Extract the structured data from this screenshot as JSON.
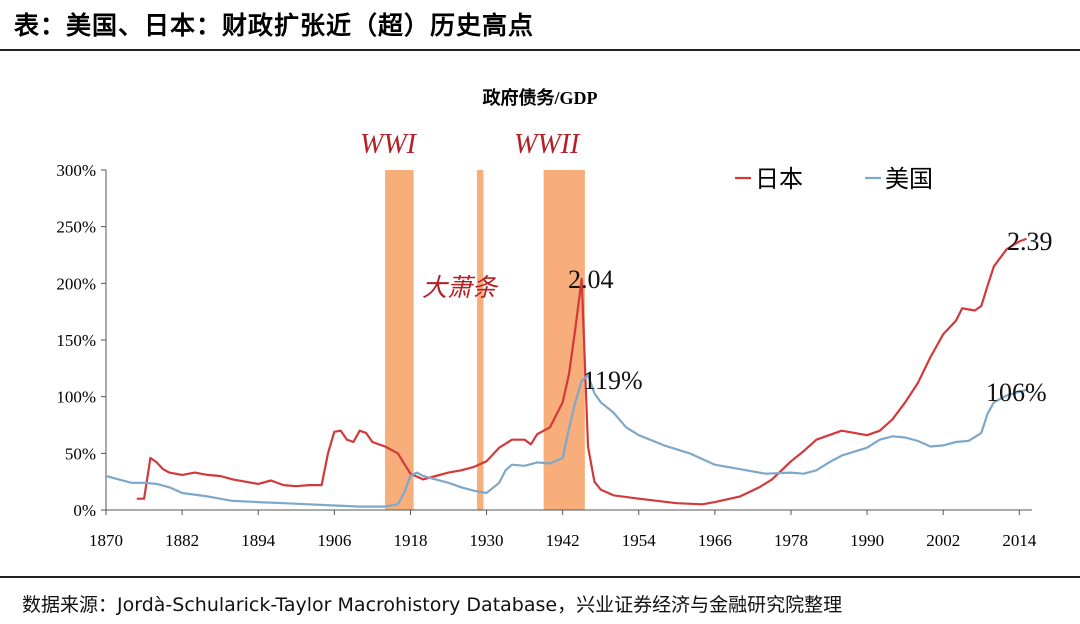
{
  "header": {
    "title": "表：美国、日本：财政扩张近（超）历史高点"
  },
  "footer": {
    "source": "数据来源：Jordà-Schularick-Taylor Macrohistory Database，兴业证券经济与金融研究院整理"
  },
  "colors": {
    "japan": "#d2393b",
    "usa": "#7ea8c9",
    "band": "#f7ae7a",
    "annotation": "#b32025"
  },
  "chart_data": {
    "type": "line",
    "title": "政府债务/GDP",
    "xlabel": "",
    "ylabel": "",
    "xlim": [
      1870,
      2016
    ],
    "ylim": [
      0,
      3.0
    ],
    "x_ticks": [
      "1870",
      "1882",
      "1894",
      "1906",
      "1918",
      "1930",
      "1942",
      "1954",
      "1966",
      "1978",
      "1990",
      "2002",
      "2014"
    ],
    "y_ticks": [
      "0%",
      "50%",
      "100%",
      "150%",
      "200%",
      "250%",
      "300%"
    ],
    "grid": false,
    "legend": {
      "position": "top-right",
      "entries": [
        "日本",
        "美国"
      ]
    },
    "bands": [
      {
        "label": "WWI",
        "start": 1914,
        "end": 1918.5
      },
      {
        "label": "",
        "start": 1928.5,
        "end": 1929.5
      },
      {
        "label": "WWII",
        "start": 1939,
        "end": 1945.5
      }
    ],
    "annotations": [
      {
        "text": "WWI"
      },
      {
        "text": "WWII"
      },
      {
        "text": "大萧条"
      },
      {
        "text": "2.04"
      },
      {
        "text": "119%"
      },
      {
        "text": "2.39"
      },
      {
        "text": "106%"
      }
    ],
    "series": [
      {
        "name": "日本",
        "points": [
          [
            1875,
            0.1
          ],
          [
            1876,
            0.1
          ],
          [
            1877,
            0.46
          ],
          [
            1878,
            0.42
          ],
          [
            1879,
            0.36
          ],
          [
            1880,
            0.33
          ],
          [
            1882,
            0.31
          ],
          [
            1884,
            0.33
          ],
          [
            1886,
            0.31
          ],
          [
            1888,
            0.3
          ],
          [
            1890,
            0.27
          ],
          [
            1892,
            0.25
          ],
          [
            1894,
            0.23
          ],
          [
            1896,
            0.26
          ],
          [
            1898,
            0.22
          ],
          [
            1900,
            0.21
          ],
          [
            1902,
            0.22
          ],
          [
            1904,
            0.22
          ],
          [
            1905,
            0.5
          ],
          [
            1906,
            0.69
          ],
          [
            1907,
            0.7
          ],
          [
            1908,
            0.62
          ],
          [
            1909,
            0.6
          ],
          [
            1910,
            0.7
          ],
          [
            1911,
            0.68
          ],
          [
            1912,
            0.6
          ],
          [
            1914,
            0.56
          ],
          [
            1916,
            0.5
          ],
          [
            1918,
            0.32
          ],
          [
            1920,
            0.27
          ],
          [
            1922,
            0.3
          ],
          [
            1924,
            0.33
          ],
          [
            1926,
            0.35
          ],
          [
            1928,
            0.38
          ],
          [
            1930,
            0.43
          ],
          [
            1932,
            0.55
          ],
          [
            1934,
            0.62
          ],
          [
            1936,
            0.62
          ],
          [
            1937,
            0.58
          ],
          [
            1938,
            0.67
          ],
          [
            1940,
            0.73
          ],
          [
            1942,
            0.95
          ],
          [
            1943,
            1.2
          ],
          [
            1944,
            1.6
          ],
          [
            1945,
            2.04
          ],
          [
            1946,
            0.56
          ],
          [
            1947,
            0.25
          ],
          [
            1948,
            0.18
          ],
          [
            1950,
            0.13
          ],
          [
            1954,
            0.1
          ],
          [
            1960,
            0.06
          ],
          [
            1964,
            0.05
          ],
          [
            1966,
            0.07
          ],
          [
            1970,
            0.12
          ],
          [
            1973,
            0.2
          ],
          [
            1975,
            0.27
          ],
          [
            1978,
            0.43
          ],
          [
            1980,
            0.52
          ],
          [
            1982,
            0.62
          ],
          [
            1984,
            0.66
          ],
          [
            1986,
            0.7
          ],
          [
            1988,
            0.68
          ],
          [
            1990,
            0.66
          ],
          [
            1992,
            0.7
          ],
          [
            1994,
            0.8
          ],
          [
            1996,
            0.95
          ],
          [
            1998,
            1.12
          ],
          [
            2000,
            1.35
          ],
          [
            2002,
            1.55
          ],
          [
            2004,
            1.67
          ],
          [
            2005,
            1.78
          ],
          [
            2007,
            1.76
          ],
          [
            2008,
            1.8
          ],
          [
            2009,
            1.98
          ],
          [
            2010,
            2.15
          ],
          [
            2012,
            2.3
          ],
          [
            2014,
            2.37
          ],
          [
            2015,
            2.39
          ]
        ]
      },
      {
        "name": "美国",
        "points": [
          [
            1870,
            0.3
          ],
          [
            1872,
            0.27
          ],
          [
            1874,
            0.24
          ],
          [
            1876,
            0.24
          ],
          [
            1878,
            0.23
          ],
          [
            1880,
            0.2
          ],
          [
            1882,
            0.15
          ],
          [
            1886,
            0.12
          ],
          [
            1890,
            0.08
          ],
          [
            1894,
            0.07
          ],
          [
            1898,
            0.06
          ],
          [
            1902,
            0.05
          ],
          [
            1906,
            0.04
          ],
          [
            1910,
            0.03
          ],
          [
            1914,
            0.03
          ],
          [
            1916,
            0.05
          ],
          [
            1917,
            0.15
          ],
          [
            1918,
            0.3
          ],
          [
            1919,
            0.33
          ],
          [
            1920,
            0.3
          ],
          [
            1922,
            0.27
          ],
          [
            1924,
            0.24
          ],
          [
            1926,
            0.2
          ],
          [
            1928,
            0.17
          ],
          [
            1930,
            0.15
          ],
          [
            1932,
            0.24
          ],
          [
            1933,
            0.35
          ],
          [
            1934,
            0.4
          ],
          [
            1936,
            0.39
          ],
          [
            1938,
            0.42
          ],
          [
            1940,
            0.41
          ],
          [
            1942,
            0.46
          ],
          [
            1943,
            0.72
          ],
          [
            1944,
            0.95
          ],
          [
            1945,
            1.14
          ],
          [
            1946,
            1.19
          ],
          [
            1947,
            1.03
          ],
          [
            1948,
            0.95
          ],
          [
            1950,
            0.86
          ],
          [
            1952,
            0.73
          ],
          [
            1954,
            0.66
          ],
          [
            1958,
            0.57
          ],
          [
            1962,
            0.5
          ],
          [
            1966,
            0.4
          ],
          [
            1970,
            0.36
          ],
          [
            1974,
            0.32
          ],
          [
            1978,
            0.33
          ],
          [
            1980,
            0.32
          ],
          [
            1982,
            0.35
          ],
          [
            1984,
            0.42
          ],
          [
            1986,
            0.48
          ],
          [
            1990,
            0.55
          ],
          [
            1992,
            0.62
          ],
          [
            1994,
            0.65
          ],
          [
            1996,
            0.64
          ],
          [
            1998,
            0.61
          ],
          [
            2000,
            0.56
          ],
          [
            2002,
            0.57
          ],
          [
            2004,
            0.6
          ],
          [
            2006,
            0.61
          ],
          [
            2008,
            0.68
          ],
          [
            2009,
            0.85
          ],
          [
            2010,
            0.95
          ],
          [
            2012,
            1.01
          ],
          [
            2015,
            1.06
          ]
        ]
      }
    ]
  }
}
